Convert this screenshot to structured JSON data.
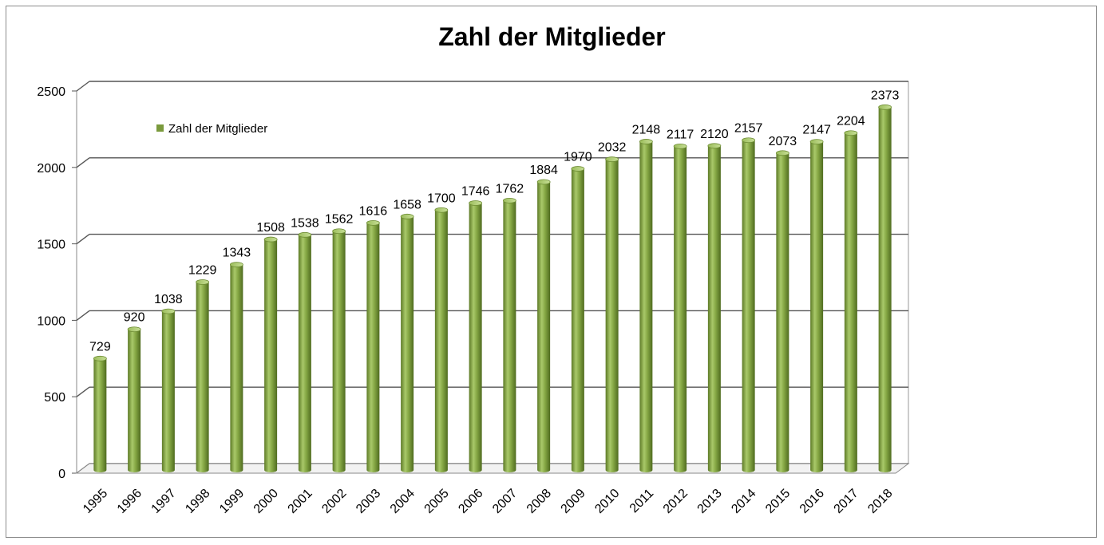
{
  "chart_data": {
    "type": "bar",
    "title": "Zahl der Mitglieder",
    "xlabel": "",
    "ylabel": "",
    "categories": [
      "1995",
      "1996",
      "1997",
      "1998",
      "1999",
      "2000",
      "2001",
      "2002",
      "2003",
      "2004",
      "2005",
      "2006",
      "2007",
      "2008",
      "2009",
      "2010",
      "2011",
      "2012",
      "2013",
      "2014",
      "2015",
      "2016",
      "2017",
      "2018"
    ],
    "series": [
      {
        "name": "Zahl der Mitglieder",
        "color": "#7a9a3c",
        "values": [
          729,
          920,
          1038,
          1229,
          1343,
          1508,
          1538,
          1562,
          1616,
          1658,
          1700,
          1746,
          1762,
          1884,
          1970,
          2032,
          2148,
          2117,
          2120,
          2157,
          2073,
          2147,
          2204,
          2373
        ]
      }
    ],
    "ylim": [
      0,
      2500
    ],
    "yticks": [
      0,
      500,
      1000,
      1500,
      2000,
      2500
    ],
    "grid": true,
    "legend_position": "top-left",
    "style": "3d-cylinder"
  }
}
